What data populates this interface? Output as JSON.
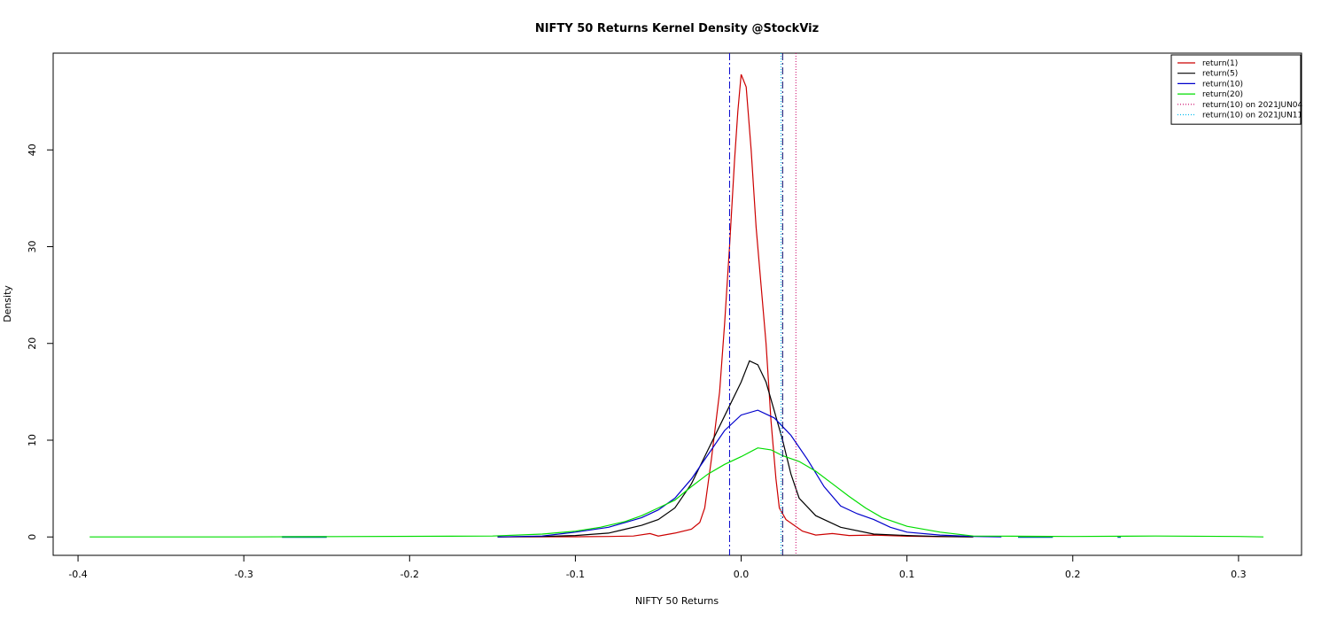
{
  "chart_data": {
    "type": "line",
    "title": "NIFTY 50 Returns Kernel Density @StockViz",
    "xlabel": "NIFTY 50 Returns",
    "ylabel": "Density",
    "xlim": [
      -0.415,
      0.338
    ],
    "ylim": [
      -1.9,
      50.0
    ],
    "x_ticks": [
      -0.4,
      -0.3,
      -0.2,
      -0.1,
      0.0,
      0.1,
      0.2,
      0.3
    ],
    "x_tick_labels": [
      "-0.4",
      "-0.3",
      "-0.2",
      "-0.1",
      "0.0",
      "0.1",
      "0.2",
      "0.3"
    ],
    "y_ticks": [
      0,
      10,
      20,
      30,
      40
    ],
    "y_tick_labels": [
      "0",
      "10",
      "20",
      "30",
      "40"
    ],
    "grid": false,
    "legend_position": "top-right",
    "series": [
      {
        "name": "return(1)",
        "color": "#cc0000",
        "style": "solid",
        "points": [
          [
            -0.147,
            0
          ],
          [
            -0.1,
            0.02
          ],
          [
            -0.08,
            0.05
          ],
          [
            -0.065,
            0.1
          ],
          [
            -0.055,
            0.35
          ],
          [
            -0.05,
            0.1
          ],
          [
            -0.04,
            0.4
          ],
          [
            -0.03,
            0.8
          ],
          [
            -0.025,
            1.5
          ],
          [
            -0.022,
            3
          ],
          [
            -0.018,
            8
          ],
          [
            -0.013,
            15
          ],
          [
            -0.01,
            22
          ],
          [
            -0.007,
            30
          ],
          [
            -0.004,
            39
          ],
          [
            -0.002,
            44
          ],
          [
            0,
            47.8
          ],
          [
            0.003,
            46.5
          ],
          [
            0.006,
            40
          ],
          [
            0.009,
            32
          ],
          [
            0.012,
            26
          ],
          [
            0.015,
            20
          ],
          [
            0.018,
            12
          ],
          [
            0.021,
            6
          ],
          [
            0.023,
            3
          ],
          [
            0.027,
            1.8
          ],
          [
            0.032,
            1.2
          ],
          [
            0.037,
            0.6
          ],
          [
            0.045,
            0.2
          ],
          [
            0.055,
            0.35
          ],
          [
            0.065,
            0.15
          ],
          [
            0.08,
            0.2
          ],
          [
            0.1,
            0.08
          ],
          [
            0.12,
            0.03
          ],
          [
            0.14,
            0
          ]
        ]
      },
      {
        "name": "return(5)",
        "color": "#000000",
        "style": "solid",
        "points": [
          [
            -0.147,
            0
          ],
          [
            -0.12,
            0.05
          ],
          [
            -0.1,
            0.15
          ],
          [
            -0.08,
            0.4
          ],
          [
            -0.07,
            0.8
          ],
          [
            -0.06,
            1.2
          ],
          [
            -0.05,
            1.8
          ],
          [
            -0.04,
            3
          ],
          [
            -0.03,
            5.5
          ],
          [
            -0.02,
            9
          ],
          [
            -0.01,
            12.5
          ],
          [
            0,
            16
          ],
          [
            0.005,
            18.2
          ],
          [
            0.01,
            17.8
          ],
          [
            0.015,
            16
          ],
          [
            0.02,
            13
          ],
          [
            0.025,
            10
          ],
          [
            0.03,
            6.5
          ],
          [
            0.035,
            4
          ],
          [
            0.045,
            2.2
          ],
          [
            0.06,
            1
          ],
          [
            0.08,
            0.3
          ],
          [
            0.1,
            0.15
          ],
          [
            0.12,
            0.05
          ],
          [
            0.14,
            0
          ]
        ]
      },
      {
        "name": "return(10)",
        "color": "#0000cc",
        "style": "solid",
        "points": [
          [
            -0.147,
            0
          ],
          [
            -0.12,
            0.1
          ],
          [
            -0.1,
            0.5
          ],
          [
            -0.08,
            1
          ],
          [
            -0.07,
            1.5
          ],
          [
            -0.06,
            2
          ],
          [
            -0.05,
            2.8
          ],
          [
            -0.04,
            4
          ],
          [
            -0.03,
            6
          ],
          [
            -0.02,
            8.5
          ],
          [
            -0.01,
            11
          ],
          [
            0,
            12.6
          ],
          [
            0.01,
            13.1
          ],
          [
            0.02,
            12.3
          ],
          [
            0.03,
            10.5
          ],
          [
            0.04,
            8
          ],
          [
            0.05,
            5.2
          ],
          [
            0.06,
            3.2
          ],
          [
            0.07,
            2.4
          ],
          [
            0.08,
            1.8
          ],
          [
            0.09,
            1
          ],
          [
            0.1,
            0.5
          ],
          [
            0.12,
            0.2
          ],
          [
            0.14,
            0.05
          ],
          [
            0.157,
            0
          ]
        ]
      },
      {
        "name": "return(20)",
        "color": "#00dd00",
        "style": "solid",
        "points": [
          [
            -0.393,
            0
          ],
          [
            -0.3,
            0
          ],
          [
            -0.15,
            0.1
          ],
          [
            -0.12,
            0.3
          ],
          [
            -0.1,
            0.6
          ],
          [
            -0.085,
            1
          ],
          [
            -0.07,
            1.6
          ],
          [
            -0.06,
            2.2
          ],
          [
            -0.05,
            3
          ],
          [
            -0.04,
            3.8
          ],
          [
            -0.03,
            5.2
          ],
          [
            -0.02,
            6.5
          ],
          [
            -0.01,
            7.5
          ],
          [
            0,
            8.3
          ],
          [
            0.01,
            9.2
          ],
          [
            0.018,
            9
          ],
          [
            0.025,
            8.4
          ],
          [
            0.035,
            7.8
          ],
          [
            0.045,
            6.8
          ],
          [
            0.055,
            5.5
          ],
          [
            0.065,
            4.2
          ],
          [
            0.075,
            3
          ],
          [
            0.085,
            2
          ],
          [
            0.1,
            1.1
          ],
          [
            0.12,
            0.5
          ],
          [
            0.14,
            0.1
          ],
          [
            0.2,
            0.05
          ],
          [
            0.25,
            0.1
          ],
          [
            0.3,
            0.05
          ],
          [
            0.315,
            0
          ]
        ]
      },
      {
        "name": "return(10) on 2021JUN04",
        "color": "#cc0066",
        "style": "dotted",
        "vline_x": 0.033
      },
      {
        "name": "return(10) on 2021JUN11",
        "color": "#00bbee",
        "style": "dotted",
        "vline_x": 0.024
      }
    ],
    "extra_vlines": [
      {
        "x": -0.007,
        "color": "#0000cc",
        "dash": "8,3,2,3"
      },
      {
        "x": 0.025,
        "color": "#000066",
        "dash": "8,3,2,3"
      }
    ],
    "rug_segments": [
      {
        "x0": -0.277,
        "x1": -0.25,
        "color": "#006699"
      },
      {
        "x0": 0.167,
        "x1": 0.188,
        "color": "#006699"
      },
      {
        "x0": 0.227,
        "x1": 0.229,
        "color": "#006699"
      }
    ]
  }
}
